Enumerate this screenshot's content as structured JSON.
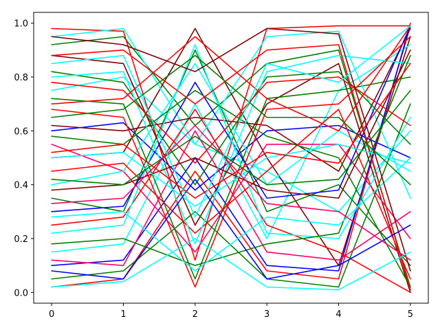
{
  "chart_data": {
    "type": "line",
    "title": "",
    "xlabel": "",
    "ylabel": "",
    "x": [
      0,
      1,
      2,
      3,
      4,
      5
    ],
    "xlim": [
      -0.25,
      5.25
    ],
    "ylim": [
      -0.04,
      1.04
    ],
    "x_ticks": [
      "0",
      "1",
      "2",
      "3",
      "4",
      "5"
    ],
    "y_ticks": [
      "0.0",
      "0.2",
      "0.4",
      "0.6",
      "0.8",
      "1.0"
    ],
    "grid": false,
    "legend": "none",
    "colors": [
      "#ff0000",
      "#008000",
      "#00ffff",
      "#800000",
      "#0000ff",
      "#ff0066"
    ],
    "series": [
      {
        "color": "#008000",
        "values": [
          0.92,
          0.95,
          0.62,
          0.85,
          0.9,
          0.02
        ]
      },
      {
        "color": "#ff0000",
        "values": [
          0.98,
          0.97,
          0.12,
          0.98,
          0.99,
          0.99
        ]
      },
      {
        "color": "#00ffff",
        "values": [
          0.75,
          0.8,
          0.55,
          0.45,
          0.3,
          0.6
        ]
      },
      {
        "color": "#800000",
        "values": [
          0.5,
          0.52,
          0.98,
          0.5,
          0.1,
          0.95
        ]
      },
      {
        "color": "#0000ff",
        "values": [
          0.6,
          0.63,
          0.38,
          0.6,
          0.62,
          0.5
        ]
      },
      {
        "color": "#ff0000",
        "values": [
          0.02,
          0.05,
          0.45,
          0.08,
          0.05,
          1.0
        ]
      },
      {
        "color": "#008000",
        "values": [
          0.35,
          0.3,
          0.9,
          0.3,
          0.4,
          0.1
        ]
      },
      {
        "color": "#00ffff",
        "values": [
          0.15,
          0.18,
          0.7,
          0.2,
          0.75,
          0.92
        ]
      },
      {
        "color": "#800000",
        "values": [
          0.88,
          0.85,
          0.25,
          0.7,
          0.85,
          0.0
        ]
      },
      {
        "color": "#0000ff",
        "values": [
          0.1,
          0.12,
          0.5,
          0.1,
          0.08,
          0.99
        ]
      },
      {
        "color": "#ff0066",
        "values": [
          0.55,
          0.45,
          0.15,
          0.55,
          0.55,
          0.2
        ]
      },
      {
        "color": "#008000",
        "values": [
          0.72,
          0.7,
          0.05,
          0.72,
          0.75,
          0.8
        ]
      },
      {
        "color": "#00ffff",
        "values": [
          0.4,
          0.45,
          0.85,
          0.4,
          0.6,
          0.45
        ]
      },
      {
        "color": "#ff0000",
        "values": [
          0.25,
          0.28,
          0.68,
          0.25,
          0.15,
          0.0
        ]
      },
      {
        "color": "#008000",
        "values": [
          0.05,
          0.08,
          0.3,
          0.05,
          0.02,
          0.7
        ]
      },
      {
        "color": "#00ffff",
        "values": [
          0.95,
          0.98,
          0.55,
          0.95,
          0.97,
          0.35
        ]
      },
      {
        "color": "#800000",
        "values": [
          0.62,
          0.6,
          0.65,
          0.62,
          0.45,
          0.98
        ]
      },
      {
        "color": "#ff0000",
        "values": [
          0.45,
          0.48,
          0.22,
          0.45,
          0.68,
          0.05
        ]
      },
      {
        "color": "#0000ff",
        "values": [
          0.3,
          0.32,
          0.78,
          0.35,
          0.38,
          0.99
        ]
      },
      {
        "color": "#008000",
        "values": [
          0.82,
          0.78,
          0.4,
          0.8,
          0.82,
          0.55
        ]
      },
      {
        "color": "#00ffff",
        "values": [
          0.22,
          0.25,
          0.92,
          0.22,
          0.2,
          0.65
        ]
      },
      {
        "color": "#ff0000",
        "values": [
          0.68,
          0.65,
          0.02,
          0.68,
          0.7,
          0.95
        ]
      },
      {
        "color": "#ff0066",
        "values": [
          0.12,
          0.1,
          0.6,
          0.15,
          0.12,
          0.3
        ]
      },
      {
        "color": "#008000",
        "values": [
          0.58,
          0.55,
          0.75,
          0.58,
          0.5,
          0.02
        ]
      },
      {
        "color": "#00ffff",
        "values": [
          0.8,
          0.82,
          0.18,
          0.82,
          0.88,
          0.85
        ]
      },
      {
        "color": "#800000",
        "values": [
          0.38,
          0.4,
          0.5,
          0.38,
          0.35,
          0.9
        ]
      },
      {
        "color": "#ff0000",
        "values": [
          0.88,
          0.9,
          0.7,
          0.9,
          0.92,
          0.01
        ]
      },
      {
        "color": "#008000",
        "values": [
          0.18,
          0.2,
          0.1,
          0.18,
          0.22,
          0.88
        ]
      },
      {
        "color": "#00ffff",
        "values": [
          0.5,
          0.52,
          0.32,
          0.5,
          0.55,
          0.48
        ]
      },
      {
        "color": "#ff0000",
        "values": [
          0.7,
          0.72,
          0.95,
          0.72,
          0.6,
          0.99
        ]
      },
      {
        "color": "#0000ff",
        "values": [
          0.08,
          0.05,
          0.42,
          0.05,
          0.1,
          0.25
        ]
      },
      {
        "color": "#008000",
        "values": [
          0.42,
          0.4,
          0.58,
          0.4,
          0.42,
          0.75
        ]
      },
      {
        "color": "#00ffff",
        "values": [
          0.28,
          0.3,
          0.08,
          0.28,
          0.25,
          0.5
        ]
      },
      {
        "color": "#ff0000",
        "values": [
          0.78,
          0.75,
          0.48,
          0.78,
          0.8,
          0.62
        ]
      },
      {
        "color": "#800000",
        "values": [
          0.95,
          0.92,
          0.82,
          0.98,
          0.96,
          0.08
        ]
      },
      {
        "color": "#00ffff",
        "values": [
          0.02,
          0.04,
          0.2,
          0.02,
          0.01,
          0.15
        ]
      },
      {
        "color": "#008000",
        "values": [
          0.65,
          0.68,
          0.88,
          0.65,
          0.65,
          0.4
        ]
      },
      {
        "color": "#ff0000",
        "values": [
          0.52,
          0.55,
          0.35,
          0.52,
          0.48,
          0.85
        ]
      },
      {
        "color": "#ff0066",
        "values": [
          0.33,
          0.35,
          0.62,
          0.33,
          0.3,
          0.12
        ]
      },
      {
        "color": "#00ffff",
        "values": [
          0.85,
          0.88,
          0.28,
          0.85,
          0.78,
          0.99
        ]
      }
    ]
  }
}
